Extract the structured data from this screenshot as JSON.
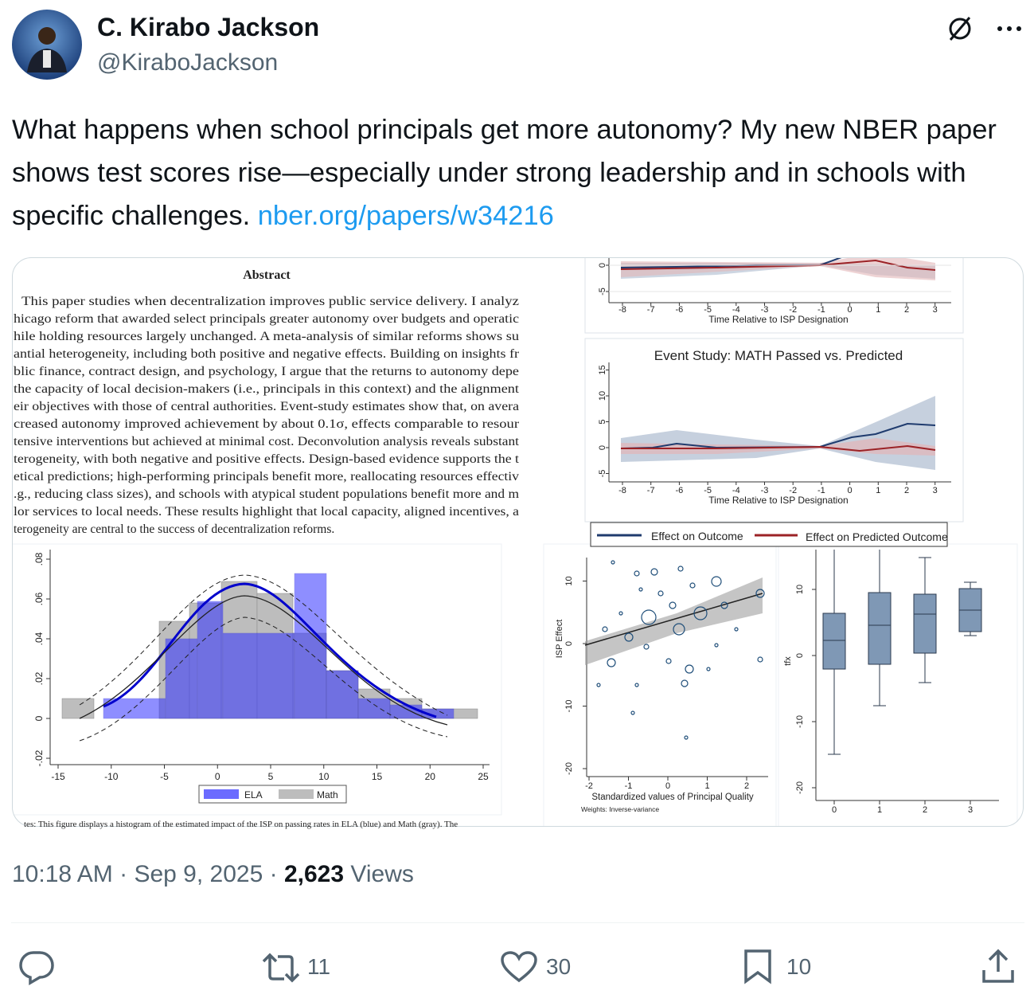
{
  "author": {
    "name": "C. Kirabo Jackson",
    "handle": "@KiraboJackson"
  },
  "tweet": {
    "text": "What happens when school principals get more autonomy? My new NBER paper shows test scores rise—especially under strong leadership and in schools with specific challenges. ",
    "link": "nber.org/papers/w34216"
  },
  "media": {
    "abstract": {
      "heading": "Abstract",
      "lines": [
        "This paper studies when decentralization improves public service delivery.  I analyz",
        "hicago reform that awarded select principals greater autonomy over budgets and operatic",
        "hile holding resources largely unchanged.  A meta-analysis of similar reforms shows su",
        "antial heterogeneity, including both positive and negative effects. Building on insights fr",
        "blic finance, contract design, and psychology, I argue that the returns to autonomy depe",
        "the capacity of local decision-makers (i.e., principals in this context) and the alignment",
        "eir objectives with those of central authorities. Event-study estimates show that, on avera",
        "creased autonomy improved achievement by about 0.1σ, effects comparable to resour",
        "tensive interventions but achieved at minimal cost. Deconvolution analysis reveals substant",
        "terogeneity, with both negative and positive effects. Design-based evidence supports the t",
        "etical predictions; high-performing principals benefit more, reallocating resources effectiv",
        ".g., reducing class sizes), and schools with atypical student populations benefit more and m",
        "lor services to local needs. These results highlight that local capacity, aligned incentives, a",
        "terogeneity are central to the success of decentralization reforms."
      ]
    },
    "event_study": {
      "xlabel": "Time Relative to ISP Designation",
      "xticks": [
        -8,
        -7,
        -6,
        -5,
        -4,
        -3,
        -2,
        -1,
        0,
        1,
        2,
        3
      ],
      "top_yticks": [
        0,
        -5
      ],
      "math_title": "Event Study: MATH Passed vs. Predicted",
      "math_yticks": [
        15,
        10,
        5,
        0,
        -5
      ],
      "legend": [
        "Effect on Outcome",
        "Effect on Predicted Outcome"
      ]
    },
    "histogram": {
      "xticks": [
        -15,
        -10,
        -5,
        0,
        5,
        10,
        15,
        20,
        25
      ],
      "yticks": [
        {
          "value": 0.08,
          "label": ".08"
        },
        {
          "value": 0.06,
          "label": ".06"
        },
        {
          "value": 0.04,
          "label": ".04"
        },
        {
          "value": 0.02,
          "label": ".02"
        },
        0,
        {
          "value": -0.02,
          "label": "-.02"
        }
      ],
      "legend": [
        "ELA",
        "Math"
      ],
      "note": "tes: This figure displays a histogram of the estimated impact of the ISP on passing rates in ELA (blue) and Math (gray). The"
    },
    "scatter": {
      "ylabel": "ISP Effect",
      "yticks": [
        10,
        0,
        -10,
        -20
      ],
      "xticks": [
        -2,
        -1,
        0,
        1,
        2
      ],
      "xlabel": "Standardized values of Principal Quality",
      "note": "Weights: Inverse-variance"
    },
    "boxplot": {
      "ylabel": "tfx",
      "yticks": [
        10,
        0,
        -10,
        -20
      ],
      "xticks": [
        0,
        1,
        2,
        3
      ]
    }
  },
  "meta": {
    "time": "10:18 AM",
    "separator": "·",
    "date": "Sep 9, 2025",
    "views": "2,623",
    "views_label": "Views"
  },
  "actions": {
    "retweets": "11",
    "likes": "30",
    "bookmarks": "10"
  }
}
